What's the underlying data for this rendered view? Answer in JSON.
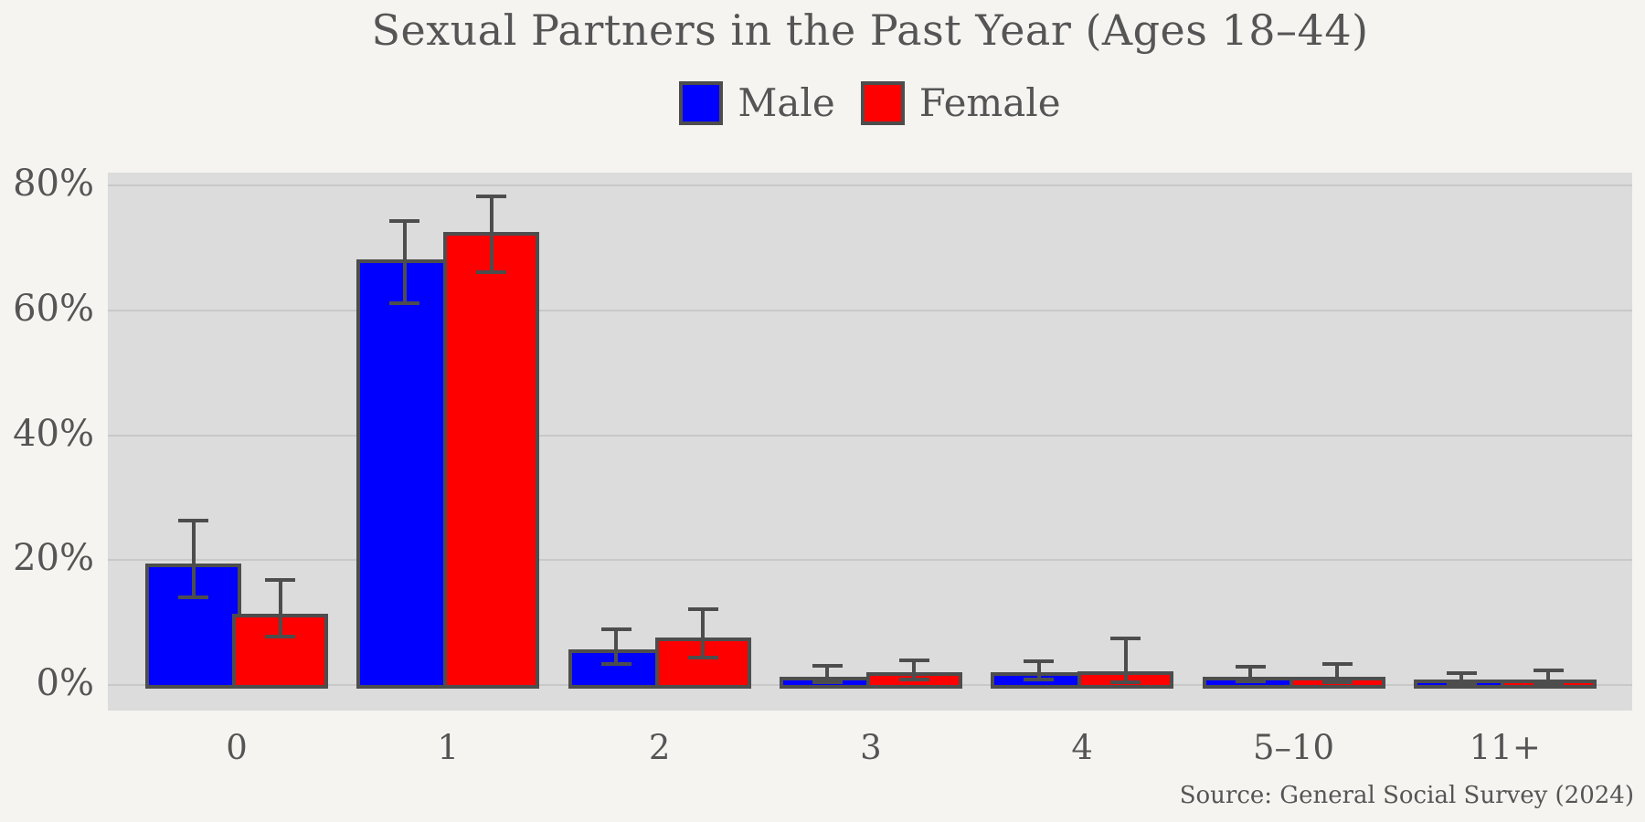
{
  "title": "Sexual Partners in the Past Year (Ages 18–44)",
  "source": "Source: General Social Survey (2024)",
  "legend": [
    {
      "label": "Male",
      "color": "#0000ff"
    },
    {
      "label": "Female",
      "color": "#ff0000"
    }
  ],
  "chart_data": {
    "type": "bar",
    "title": "Sexual Partners in the Past Year (Ages 18–44)",
    "categories": [
      "0",
      "1",
      "2",
      "3",
      "4",
      "5–10",
      "11+"
    ],
    "series": [
      {
        "name": "Male",
        "color": "#0000ff",
        "values": [
          19.3,
          68.1,
          5.5,
          1.2,
          1.9,
          1.2,
          0.7
        ],
        "err_low": [
          14.1,
          61.2,
          3.3,
          0.5,
          0.9,
          0.6,
          0.2
        ],
        "err_high": [
          26.4,
          74.4,
          8.9,
          3.0,
          3.8,
          2.9,
          1.9
        ]
      },
      {
        "name": "Female",
        "color": "#ff0000",
        "values": [
          11.3,
          72.4,
          7.4,
          1.9,
          2.0,
          1.2,
          0.7
        ],
        "err_low": [
          7.8,
          66.1,
          4.4,
          0.9,
          0.5,
          0.5,
          0.2
        ],
        "err_high": [
          16.8,
          78.3,
          12.2,
          4.0,
          7.4,
          3.3,
          2.3
        ]
      }
    ],
    "xlabel": "",
    "ylabel": "",
    "yticks": [
      0,
      20,
      40,
      60,
      80
    ],
    "ytick_labels": [
      "0%",
      "20%",
      "40%",
      "60%",
      "80%"
    ],
    "ylim": [
      -4.1,
      82.1
    ],
    "grid": true,
    "legend_position": "top-center",
    "annotation": "Source: General Social Survey (2024)",
    "style": {
      "bar_edge_color": "#4d4d4d",
      "error_bar_color": "#4d4d4d",
      "plot_background": "#dcdcdc",
      "figure_background": "#f5f4f1",
      "gridline_color": "#c8c8c8",
      "text_color": "#555555"
    }
  }
}
